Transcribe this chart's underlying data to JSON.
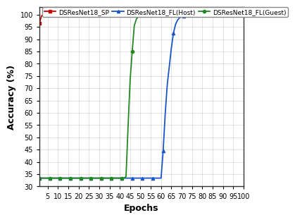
{
  "title": "",
  "xlabel": "Epochs",
  "ylabel": "Accuracy (%)",
  "xlim": [
    1,
    100
  ],
  "ylim": [
    30,
    103
  ],
  "xticks": [
    5,
    10,
    15,
    20,
    25,
    30,
    35,
    40,
    45,
    50,
    55,
    60,
    65,
    70,
    75,
    80,
    85,
    90,
    95,
    100
  ],
  "yticks": [
    30,
    35,
    40,
    45,
    50,
    55,
    60,
    65,
    70,
    75,
    80,
    85,
    90,
    95,
    100
  ],
  "series": [
    {
      "label": "DSResNet18_SP",
      "color": "#cc0000",
      "marker": "s",
      "points": [
        [
          1,
          96.5
        ],
        [
          2,
          99.5
        ],
        [
          3,
          100.0
        ],
        [
          4,
          100.0
        ],
        [
          5,
          100.0
        ],
        [
          6,
          100.0
        ],
        [
          7,
          100.0
        ],
        [
          8,
          100.0
        ],
        [
          9,
          100.0
        ],
        [
          10,
          100.0
        ],
        [
          11,
          100.0
        ],
        [
          12,
          100.0
        ],
        [
          13,
          100.0
        ],
        [
          14,
          100.0
        ],
        [
          15,
          100.0
        ],
        [
          16,
          100.0
        ],
        [
          17,
          100.0
        ],
        [
          18,
          100.0
        ],
        [
          19,
          100.0
        ],
        [
          20,
          100.0
        ],
        [
          21,
          100.0
        ],
        [
          22,
          100.0
        ],
        [
          23,
          100.0
        ],
        [
          24,
          100.0
        ],
        [
          25,
          100.0
        ],
        [
          26,
          100.0
        ],
        [
          27,
          100.0
        ],
        [
          28,
          100.0
        ],
        [
          29,
          100.0
        ],
        [
          30,
          100.0
        ],
        [
          31,
          100.0
        ],
        [
          32,
          100.0
        ],
        [
          33,
          100.0
        ],
        [
          34,
          100.0
        ],
        [
          35,
          100.0
        ],
        [
          36,
          100.0
        ],
        [
          37,
          100.0
        ],
        [
          38,
          100.0
        ],
        [
          39,
          100.0
        ],
        [
          40,
          100.0
        ],
        [
          41,
          100.0
        ],
        [
          42,
          100.0
        ],
        [
          43,
          100.0
        ],
        [
          44,
          100.0
        ],
        [
          45,
          100.0
        ],
        [
          46,
          100.0
        ],
        [
          47,
          100.0
        ],
        [
          48,
          100.0
        ],
        [
          49,
          100.0
        ],
        [
          50,
          100.0
        ],
        [
          51,
          100.0
        ],
        [
          52,
          100.0
        ],
        [
          53,
          100.0
        ],
        [
          54,
          100.0
        ],
        [
          55,
          100.0
        ],
        [
          56,
          100.0
        ],
        [
          57,
          100.0
        ],
        [
          58,
          100.0
        ],
        [
          59,
          100.0
        ],
        [
          60,
          100.0
        ],
        [
          61,
          100.0
        ],
        [
          62,
          100.0
        ],
        [
          63,
          100.0
        ],
        [
          64,
          100.0
        ],
        [
          65,
          100.0
        ],
        [
          66,
          100.0
        ],
        [
          67,
          100.0
        ],
        [
          68,
          100.0
        ],
        [
          69,
          100.0
        ],
        [
          70,
          100.0
        ],
        [
          71,
          100.0
        ],
        [
          72,
          100.0
        ],
        [
          73,
          100.0
        ],
        [
          74,
          100.0
        ],
        [
          75,
          100.0
        ],
        [
          76,
          100.0
        ],
        [
          77,
          100.0
        ],
        [
          78,
          100.0
        ],
        [
          79,
          100.0
        ],
        [
          80,
          100.0
        ],
        [
          81,
          100.0
        ],
        [
          82,
          100.0
        ],
        [
          83,
          100.0
        ],
        [
          84,
          100.0
        ],
        [
          85,
          100.0
        ],
        [
          86,
          100.0
        ],
        [
          87,
          100.0
        ],
        [
          88,
          100.0
        ],
        [
          89,
          100.0
        ],
        [
          90,
          100.0
        ],
        [
          91,
          100.0
        ],
        [
          92,
          100.0
        ],
        [
          93,
          100.0
        ],
        [
          94,
          100.0
        ],
        [
          95,
          100.0
        ],
        [
          96,
          100.0
        ],
        [
          97,
          100.0
        ],
        [
          98,
          99.8
        ],
        [
          99,
          100.0
        ],
        [
          100,
          100.0
        ]
      ]
    },
    {
      "label": "DSResNet18_FL(Host)",
      "color": "#1a55c8",
      "marker": "^",
      "points": [
        [
          1,
          33.4
        ],
        [
          2,
          33.4
        ],
        [
          3,
          33.4
        ],
        [
          4,
          33.4
        ],
        [
          5,
          33.4
        ],
        [
          6,
          33.4
        ],
        [
          7,
          33.4
        ],
        [
          8,
          33.4
        ],
        [
          9,
          33.4
        ],
        [
          10,
          33.4
        ],
        [
          11,
          33.4
        ],
        [
          12,
          33.4
        ],
        [
          13,
          33.4
        ],
        [
          14,
          33.4
        ],
        [
          15,
          33.4
        ],
        [
          16,
          33.4
        ],
        [
          17,
          33.4
        ],
        [
          18,
          33.4
        ],
        [
          19,
          33.4
        ],
        [
          20,
          33.4
        ],
        [
          21,
          33.4
        ],
        [
          22,
          33.4
        ],
        [
          23,
          33.4
        ],
        [
          24,
          33.4
        ],
        [
          25,
          33.4
        ],
        [
          26,
          33.4
        ],
        [
          27,
          33.4
        ],
        [
          28,
          33.4
        ],
        [
          29,
          33.4
        ],
        [
          30,
          33.4
        ],
        [
          31,
          33.4
        ],
        [
          32,
          33.4
        ],
        [
          33,
          33.4
        ],
        [
          34,
          33.4
        ],
        [
          35,
          33.4
        ],
        [
          36,
          33.4
        ],
        [
          37,
          33.4
        ],
        [
          38,
          33.4
        ],
        [
          39,
          33.4
        ],
        [
          40,
          33.4
        ],
        [
          41,
          33.4
        ],
        [
          42,
          33.4
        ],
        [
          43,
          33.4
        ],
        [
          44,
          33.4
        ],
        [
          45,
          33.4
        ],
        [
          46,
          33.4
        ],
        [
          47,
          33.4
        ],
        [
          48,
          33.4
        ],
        [
          49,
          33.4
        ],
        [
          50,
          33.4
        ],
        [
          51,
          33.4
        ],
        [
          52,
          33.4
        ],
        [
          53,
          33.4
        ],
        [
          54,
          33.4
        ],
        [
          55,
          33.4
        ],
        [
          56,
          33.4
        ],
        [
          57,
          33.4
        ],
        [
          58,
          33.4
        ],
        [
          59,
          33.4
        ],
        [
          60,
          33.4
        ],
        [
          61,
          44.5
        ],
        [
          62,
          59.5
        ],
        [
          63,
          71.5
        ],
        [
          64,
          79.0
        ],
        [
          65,
          86.5
        ],
        [
          66,
          92.5
        ],
        [
          67,
          96.0
        ],
        [
          68,
          97.8
        ],
        [
          69,
          98.8
        ],
        [
          70,
          99.2
        ],
        [
          71,
          99.5
        ],
        [
          72,
          99.7
        ],
        [
          73,
          99.85
        ],
        [
          74,
          99.9
        ],
        [
          75,
          99.95
        ],
        [
          76,
          100.0
        ],
        [
          77,
          100.0
        ],
        [
          78,
          100.0
        ],
        [
          79,
          100.0
        ],
        [
          80,
          100.0
        ],
        [
          81,
          100.0
        ],
        [
          82,
          100.0
        ],
        [
          83,
          100.0
        ],
        [
          84,
          100.0
        ],
        [
          85,
          100.0
        ],
        [
          86,
          100.0
        ],
        [
          87,
          100.0
        ],
        [
          88,
          100.0
        ],
        [
          89,
          100.0
        ],
        [
          90,
          100.0
        ],
        [
          91,
          100.0
        ],
        [
          92,
          100.0
        ],
        [
          93,
          100.0
        ],
        [
          94,
          100.0
        ],
        [
          95,
          100.0
        ],
        [
          96,
          100.0
        ],
        [
          97,
          100.0
        ],
        [
          98,
          100.0
        ],
        [
          99,
          100.0
        ],
        [
          100,
          100.0
        ]
      ]
    },
    {
      "label": "DSResNet18_FL(Guest)",
      "color": "#228822",
      "marker": "o",
      "points": [
        [
          1,
          33.4
        ],
        [
          2,
          33.4
        ],
        [
          3,
          33.4
        ],
        [
          4,
          33.4
        ],
        [
          5,
          33.4
        ],
        [
          6,
          33.4
        ],
        [
          7,
          33.4
        ],
        [
          8,
          33.4
        ],
        [
          9,
          33.4
        ],
        [
          10,
          33.4
        ],
        [
          11,
          33.4
        ],
        [
          12,
          33.4
        ],
        [
          13,
          33.4
        ],
        [
          14,
          33.4
        ],
        [
          15,
          33.4
        ],
        [
          16,
          33.4
        ],
        [
          17,
          33.4
        ],
        [
          18,
          33.4
        ],
        [
          19,
          33.4
        ],
        [
          20,
          33.4
        ],
        [
          21,
          33.4
        ],
        [
          22,
          33.4
        ],
        [
          23,
          33.4
        ],
        [
          24,
          33.4
        ],
        [
          25,
          33.4
        ],
        [
          26,
          33.4
        ],
        [
          27,
          33.4
        ],
        [
          28,
          33.4
        ],
        [
          29,
          33.4
        ],
        [
          30,
          33.4
        ],
        [
          31,
          33.4
        ],
        [
          32,
          33.4
        ],
        [
          33,
          33.4
        ],
        [
          34,
          33.4
        ],
        [
          35,
          33.4
        ],
        [
          36,
          33.4
        ],
        [
          37,
          33.4
        ],
        [
          38,
          33.4
        ],
        [
          39,
          33.4
        ],
        [
          40,
          33.4
        ],
        [
          41,
          33.4
        ],
        [
          42,
          33.4
        ],
        [
          43,
          34.0
        ],
        [
          44,
          54.5
        ],
        [
          45,
          73.5
        ],
        [
          46,
          85.0
        ],
        [
          47,
          95.5
        ],
        [
          48,
          98.2
        ],
        [
          49,
          99.3
        ],
        [
          50,
          99.7
        ],
        [
          51,
          99.9
        ],
        [
          52,
          100.0
        ],
        [
          53,
          100.0
        ],
        [
          54,
          100.0
        ],
        [
          55,
          100.0
        ],
        [
          56,
          100.0
        ],
        [
          57,
          100.0
        ],
        [
          58,
          100.0
        ],
        [
          59,
          100.0
        ],
        [
          60,
          100.0
        ],
        [
          61,
          100.0
        ],
        [
          62,
          100.0
        ],
        [
          63,
          100.0
        ],
        [
          64,
          100.0
        ],
        [
          65,
          100.0
        ],
        [
          66,
          100.0
        ],
        [
          67,
          100.0
        ],
        [
          68,
          100.0
        ],
        [
          69,
          100.0
        ],
        [
          70,
          100.0
        ],
        [
          71,
          100.0
        ],
        [
          72,
          100.0
        ],
        [
          73,
          100.0
        ],
        [
          74,
          100.0
        ],
        [
          75,
          100.0
        ],
        [
          76,
          100.0
        ],
        [
          77,
          100.0
        ],
        [
          78,
          100.0
        ],
        [
          79,
          100.0
        ],
        [
          80,
          100.0
        ],
        [
          81,
          100.0
        ],
        [
          82,
          100.0
        ],
        [
          83,
          100.0
        ],
        [
          84,
          100.0
        ],
        [
          85,
          100.0
        ],
        [
          86,
          100.0
        ],
        [
          87,
          100.0
        ],
        [
          88,
          100.0
        ],
        [
          89,
          100.0
        ],
        [
          90,
          100.0
        ],
        [
          91,
          100.0
        ],
        [
          92,
          100.0
        ],
        [
          93,
          100.0
        ],
        [
          94,
          100.0
        ],
        [
          95,
          100.0
        ],
        [
          96,
          100.0
        ],
        [
          97,
          100.0
        ],
        [
          98,
          100.0
        ],
        [
          99,
          100.0
        ],
        [
          100,
          100.0
        ]
      ]
    }
  ],
  "legend_fontsize": 6.5,
  "axis_label_fontsize": 9,
  "tick_fontsize": 7,
  "linewidth": 1.3,
  "markersize": 3.0,
  "markevery": 5,
  "background_color": "#ffffff",
  "grid_color": "#bbbbbb"
}
